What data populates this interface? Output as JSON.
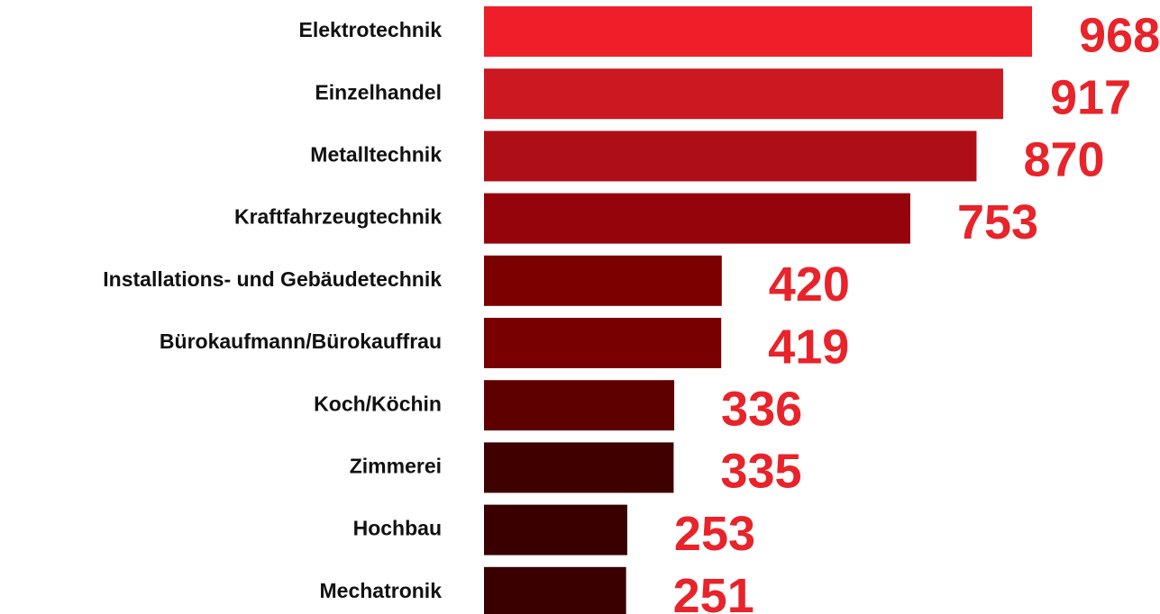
{
  "chart_data": {
    "type": "bar",
    "orientation": "horizontal",
    "categories": [
      "Elektrotechnik",
      "Einzelhandel",
      "Metalltechnik",
      "Kraftfahrzeugtechnik",
      "Installations- und Gebäudetechnik",
      "Bürokaufmann/Bürokauffrau",
      "Koch/Köchin",
      "Zimmerei",
      "Hochbau",
      "Mechatronik"
    ],
    "values": [
      968,
      917,
      870,
      753,
      420,
      419,
      336,
      335,
      253,
      251
    ],
    "colors": [
      "#ee1f28",
      "#cc1820",
      "#ae0f16",
      "#94040a",
      "#7c0000",
      "#780000",
      "#5e0000",
      "#3f0000",
      "#3a0000",
      "#3a0000"
    ],
    "label_color": "#e8232a"
  }
}
